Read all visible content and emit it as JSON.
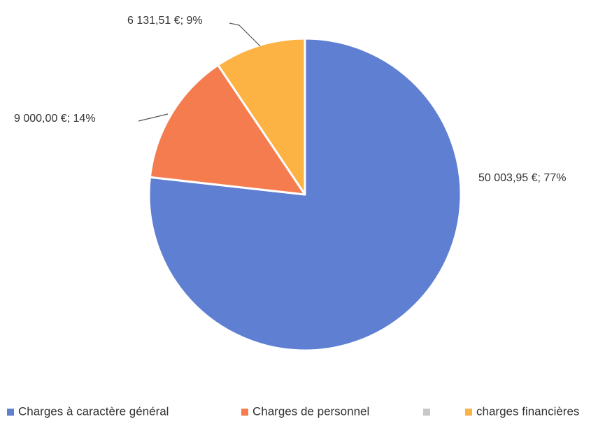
{
  "chart_data": {
    "type": "pie",
    "categories": [
      "Charges à caractère général",
      "Charges de personnel",
      null,
      "charges financières"
    ],
    "values": [
      50003.95,
      9000.0,
      0,
      6131.51
    ],
    "value_labels": [
      "50 003,95 €; 77%",
      "9 000,00 €; 14%",
      null,
      "6 131,51 €; 9%"
    ],
    "colors": [
      "#5f7fd2",
      "#f47c4f",
      "#c8c8c8",
      "#fdb244"
    ],
    "legend": "bottom"
  }
}
